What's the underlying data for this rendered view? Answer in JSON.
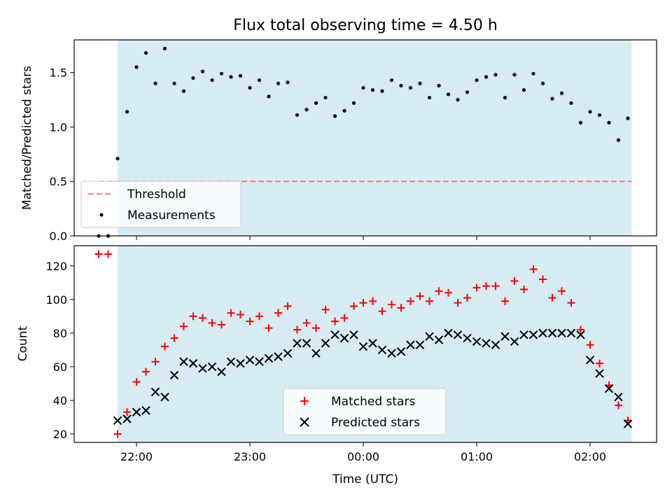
{
  "chart_data": [
    {
      "type": "scatter",
      "title": "Flux total observing time = 4.50 h",
      "xlabel": "",
      "ylabel": "Matched/Predicted stars",
      "ylim": [
        0,
        1.8
      ],
      "yticks": [
        "0.0",
        "0.5",
        "1.0",
        "1.5"
      ],
      "shaded_region": {
        "start": "21:50",
        "end": "02:22",
        "color": "#add8e6"
      },
      "threshold": {
        "name": "Threshold",
        "value": 0.5,
        "color": "#f08080",
        "style": "dashed"
      },
      "legend": {
        "placement": "lower-left",
        "entries": [
          "Threshold",
          "Measurements"
        ]
      },
      "series": [
        {
          "name": "Measurements",
          "marker": "dot",
          "color": "#000000",
          "x": [
            "21:40",
            "21:45",
            "21:50",
            "21:55",
            "22:00",
            "22:05",
            "22:10",
            "22:15",
            "22:20",
            "22:25",
            "22:30",
            "22:35",
            "22:40",
            "22:45",
            "22:50",
            "22:55",
            "23:00",
            "23:05",
            "23:10",
            "23:15",
            "23:20",
            "23:25",
            "23:30",
            "23:35",
            "23:40",
            "23:45",
            "23:50",
            "23:55",
            "00:00",
            "00:05",
            "00:10",
            "00:15",
            "00:20",
            "00:25",
            "00:30",
            "00:35",
            "00:40",
            "00:45",
            "00:50",
            "00:55",
            "01:00",
            "01:05",
            "01:10",
            "01:15",
            "01:20",
            "01:25",
            "01:30",
            "01:35",
            "01:40",
            "01:45",
            "01:50",
            "01:55",
            "02:00",
            "02:05",
            "02:10",
            "02:15",
            "02:20"
          ],
          "values": [
            0.0,
            0.0,
            0.71,
            1.14,
            1.55,
            1.68,
            1.4,
            1.72,
            1.4,
            1.33,
            1.45,
            1.51,
            1.43,
            1.49,
            1.46,
            1.47,
            1.36,
            1.43,
            1.28,
            1.4,
            1.41,
            1.11,
            1.16,
            1.22,
            1.27,
            1.1,
            1.15,
            1.22,
            1.36,
            1.34,
            1.33,
            1.43,
            1.38,
            1.36,
            1.4,
            1.27,
            1.38,
            1.3,
            1.25,
            1.32,
            1.43,
            1.46,
            1.48,
            1.27,
            1.48,
            1.34,
            1.49,
            1.4,
            1.26,
            1.31,
            1.22,
            1.04,
            1.14,
            1.11,
            1.04,
            0.88,
            1.08
          ]
        }
      ]
    },
    {
      "type": "scatter",
      "xlabel": "Time (UTC)",
      "ylabel": "Count",
      "ylim": [
        15,
        132
      ],
      "yticks": [
        "20",
        "40",
        "60",
        "80",
        "100",
        "120"
      ],
      "xticks": [
        "22:00",
        "23:00",
        "00:00",
        "01:00",
        "02:00"
      ],
      "shaded_region": {
        "start": "21:50",
        "end": "02:22",
        "color": "#add8e6"
      },
      "legend": {
        "placement": "lower-center",
        "entries": [
          "Matched stars",
          "Predicted stars"
        ]
      },
      "series": [
        {
          "name": "Matched stars",
          "marker": "plus",
          "color": "#ff0000",
          "x": [
            "21:40",
            "21:45",
            "21:50",
            "21:55",
            "22:00",
            "22:05",
            "22:10",
            "22:15",
            "22:20",
            "22:25",
            "22:30",
            "22:35",
            "22:40",
            "22:45",
            "22:50",
            "22:55",
            "23:00",
            "23:05",
            "23:10",
            "23:15",
            "23:20",
            "23:25",
            "23:30",
            "23:35",
            "23:40",
            "23:45",
            "23:50",
            "23:55",
            "00:00",
            "00:05",
            "00:10",
            "00:15",
            "00:20",
            "00:25",
            "00:30",
            "00:35",
            "00:40",
            "00:45",
            "00:50",
            "00:55",
            "01:00",
            "01:05",
            "01:10",
            "01:15",
            "01:20",
            "01:25",
            "01:30",
            "01:35",
            "01:40",
            "01:45",
            "01:50",
            "01:55",
            "02:00",
            "02:05",
            "02:10",
            "02:15",
            "02:20"
          ],
          "values": [
            127,
            127,
            20,
            33,
            51,
            57,
            63,
            72,
            77,
            84,
            90,
            89,
            86,
            85,
            92,
            91,
            87,
            90,
            83,
            92,
            96,
            82,
            86,
            83,
            94,
            87,
            89,
            96,
            98,
            99,
            93,
            97,
            95,
            99,
            102,
            99,
            105,
            104,
            98,
            101,
            107,
            108,
            108,
            99,
            111,
            106,
            118,
            112,
            101,
            105,
            98,
            82,
            73,
            62,
            49,
            37,
            28
          ]
        },
        {
          "name": "Predicted stars",
          "marker": "x",
          "color": "#000000",
          "x": [
            "21:50",
            "21:55",
            "22:00",
            "22:05",
            "22:10",
            "22:15",
            "22:20",
            "22:25",
            "22:30",
            "22:35",
            "22:40",
            "22:45",
            "22:50",
            "22:55",
            "23:00",
            "23:05",
            "23:10",
            "23:15",
            "23:20",
            "23:25",
            "23:30",
            "23:35",
            "23:40",
            "23:45",
            "23:50",
            "23:55",
            "00:00",
            "00:05",
            "00:10",
            "00:15",
            "00:20",
            "00:25",
            "00:30",
            "00:35",
            "00:40",
            "00:45",
            "00:50",
            "00:55",
            "01:00",
            "01:05",
            "01:10",
            "01:15",
            "01:20",
            "01:25",
            "01:30",
            "01:35",
            "01:40",
            "01:45",
            "01:50",
            "01:55",
            "02:00",
            "02:05",
            "02:10",
            "02:15",
            "02:20"
          ],
          "values": [
            28,
            29,
            33,
            34,
            45,
            42,
            55,
            63,
            62,
            59,
            60,
            57,
            63,
            62,
            64,
            63,
            65,
            66,
            68,
            74,
            74,
            68,
            74,
            79,
            77,
            79,
            72,
            74,
            70,
            68,
            69,
            73,
            73,
            78,
            76,
            80,
            79,
            77,
            75,
            74,
            73,
            78,
            75,
            79,
            79,
            80,
            80,
            80,
            80,
            79,
            64,
            56,
            47,
            42,
            26
          ]
        }
      ]
    }
  ]
}
